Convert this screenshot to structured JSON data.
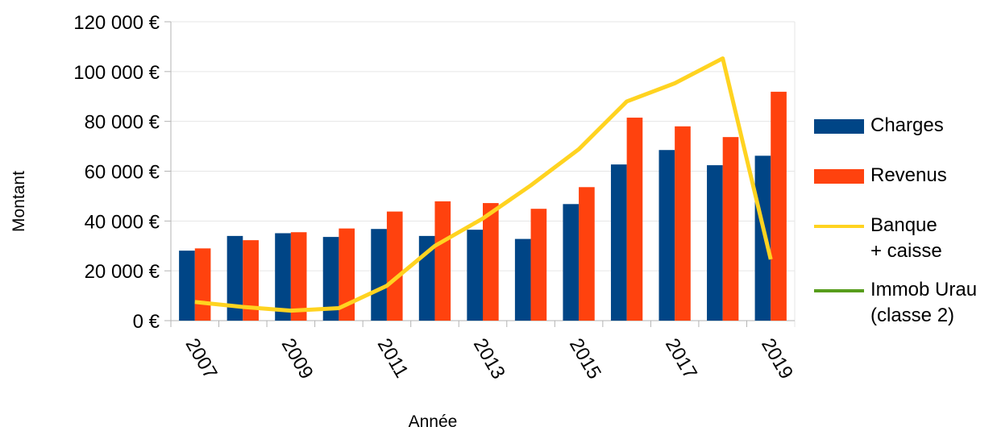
{
  "chart_data": {
    "type": "bar",
    "x_label": "Année",
    "y_label": "Montant",
    "categories": [
      "2007",
      null,
      "2009",
      null,
      "2011",
      null,
      "2013",
      null,
      "2015",
      null,
      "2017",
      null,
      "2019"
    ],
    "series": [
      {
        "name": "Charges",
        "color": "#004586",
        "type": "bar",
        "values": [
          28100,
          34000,
          35100,
          33600,
          36800,
          34000,
          36500,
          32800,
          46800,
          62700,
          68500,
          62400,
          66200
        ]
      },
      {
        "name": "Revenus",
        "color": "#ff420e",
        "type": "bar",
        "values": [
          29000,
          32300,
          35500,
          37000,
          43800,
          47900,
          47200,
          44900,
          53600,
          81500,
          78000,
          73700,
          91900
        ]
      },
      {
        "name": "Banque\n+ caisse",
        "color": "#ffd320",
        "type": "line",
        "values": [
          7500,
          5500,
          4000,
          5000,
          14000,
          30000,
          41000,
          54300,
          68800,
          88000,
          95300,
          105300,
          24600
        ]
      },
      {
        "name": "Immob Urau\n(classe 2)",
        "color": "#579d1c",
        "type": "line",
        "values": [
          null,
          null,
          null,
          null,
          null,
          null,
          null,
          null,
          null,
          null,
          null,
          null,
          null
        ]
      }
    ],
    "ylim": [
      0,
      120000
    ],
    "yticks": [
      {
        "value": 0,
        "label": "0 €"
      },
      {
        "value": 20000,
        "label": "20 000 €"
      },
      {
        "value": 40000,
        "label": "40 000 €"
      },
      {
        "value": 60000,
        "label": "60 000 €"
      },
      {
        "value": 80000,
        "label": "80 000 €"
      },
      {
        "value": 100000,
        "label": "100 000 €"
      },
      {
        "value": 120000,
        "label": "120 000 €"
      }
    ],
    "grid": true,
    "legend": "right"
  }
}
